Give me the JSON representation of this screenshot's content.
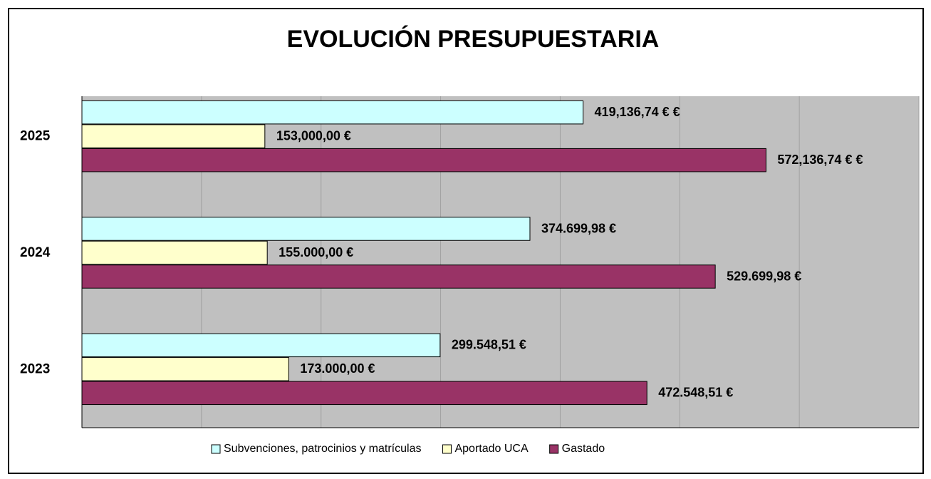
{
  "chart_data": {
    "type": "bar",
    "orientation": "horizontal",
    "title": "EVOLUCIÓN PRESUPUESTARIA",
    "categories": [
      "2023",
      "2024",
      "2025"
    ],
    "series": [
      {
        "name": "Subvenciones, patrocinios y matrículas",
        "color": "#ccffff",
        "values": [
          299548.51,
          374699.98,
          419136.74
        ],
        "value_labels": [
          "299.548,51 €",
          "374.699,98 €",
          "419,136,74 € €"
        ]
      },
      {
        "name": "Aportado UCA",
        "color": "#ffffcc",
        "values": [
          173000,
          155000,
          153000
        ],
        "value_labels": [
          "173.000,00 €",
          "155.000,00 €",
          "153,000,00 €"
        ]
      },
      {
        "name": "Gastado",
        "color": "#993366",
        "values": [
          472548.51,
          529699.98,
          572136.74
        ],
        "value_labels": [
          "472.548,51 €",
          "529.699,98 €",
          "572,136,74 € €"
        ]
      }
    ],
    "xlim": [
      0,
      700000
    ],
    "xticks": [
      0,
      100000,
      200000,
      300000,
      400000,
      500000,
      600000,
      700000
    ],
    "grid": true,
    "legend": "bottom"
  }
}
